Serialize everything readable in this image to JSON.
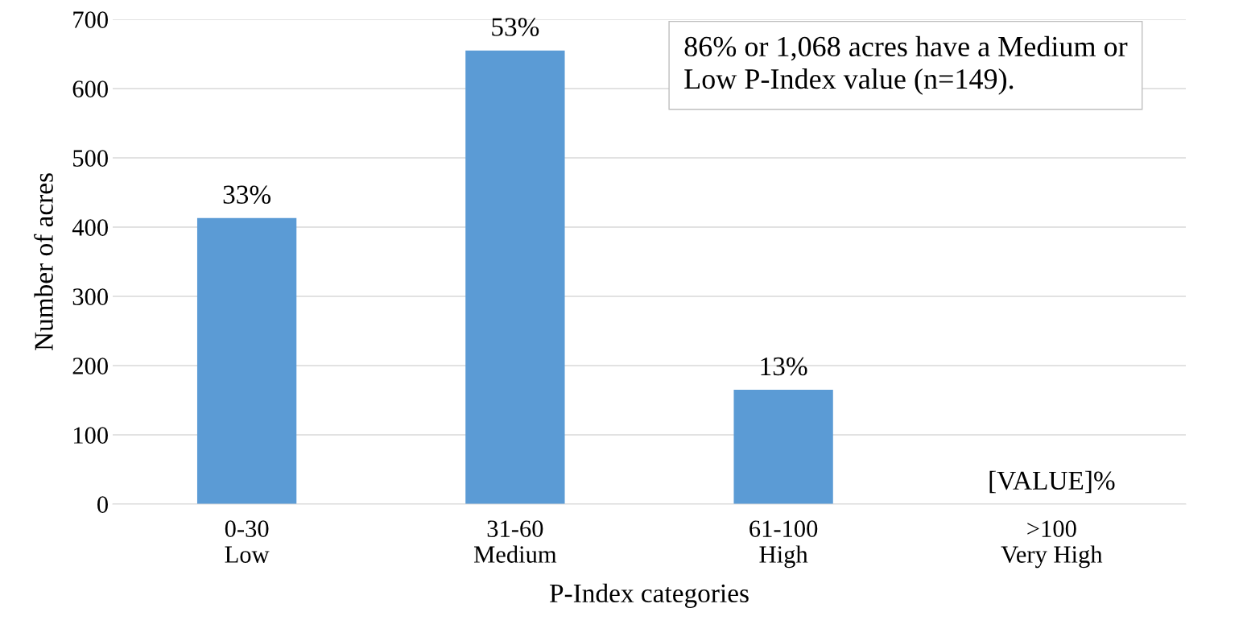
{
  "chart_data": {
    "type": "bar",
    "xlabel": "P-Index categories",
    "ylabel": "Number of acres",
    "categories": [
      "0-30\nLow",
      "31-60\nMedium",
      "61-100\nHigh",
      ">100\nVery High"
    ],
    "values": [
      413,
      655,
      165,
      0
    ],
    "color": "#5b9bd5",
    "ylim": [
      0,
      700
    ],
    "yticks": [
      0,
      100,
      200,
      300,
      400,
      500,
      600,
      700
    ],
    "grid": "y",
    "legend": false,
    "annotations": [
      {
        "text": "33%",
        "x": "0-30\nLow",
        "y": 413
      },
      {
        "text": "53%",
        "x": "31-60\nMedium",
        "y": 655
      },
      {
        "text": "13%",
        "x": "61-100\nHigh",
        "y": 165
      },
      {
        "text": "[VALUE]%",
        "x": ">100\nVery High",
        "y": 0
      },
      "86% or 1,068 acres have a Medium or\nLow P-Index value (n=149)."
    ]
  }
}
